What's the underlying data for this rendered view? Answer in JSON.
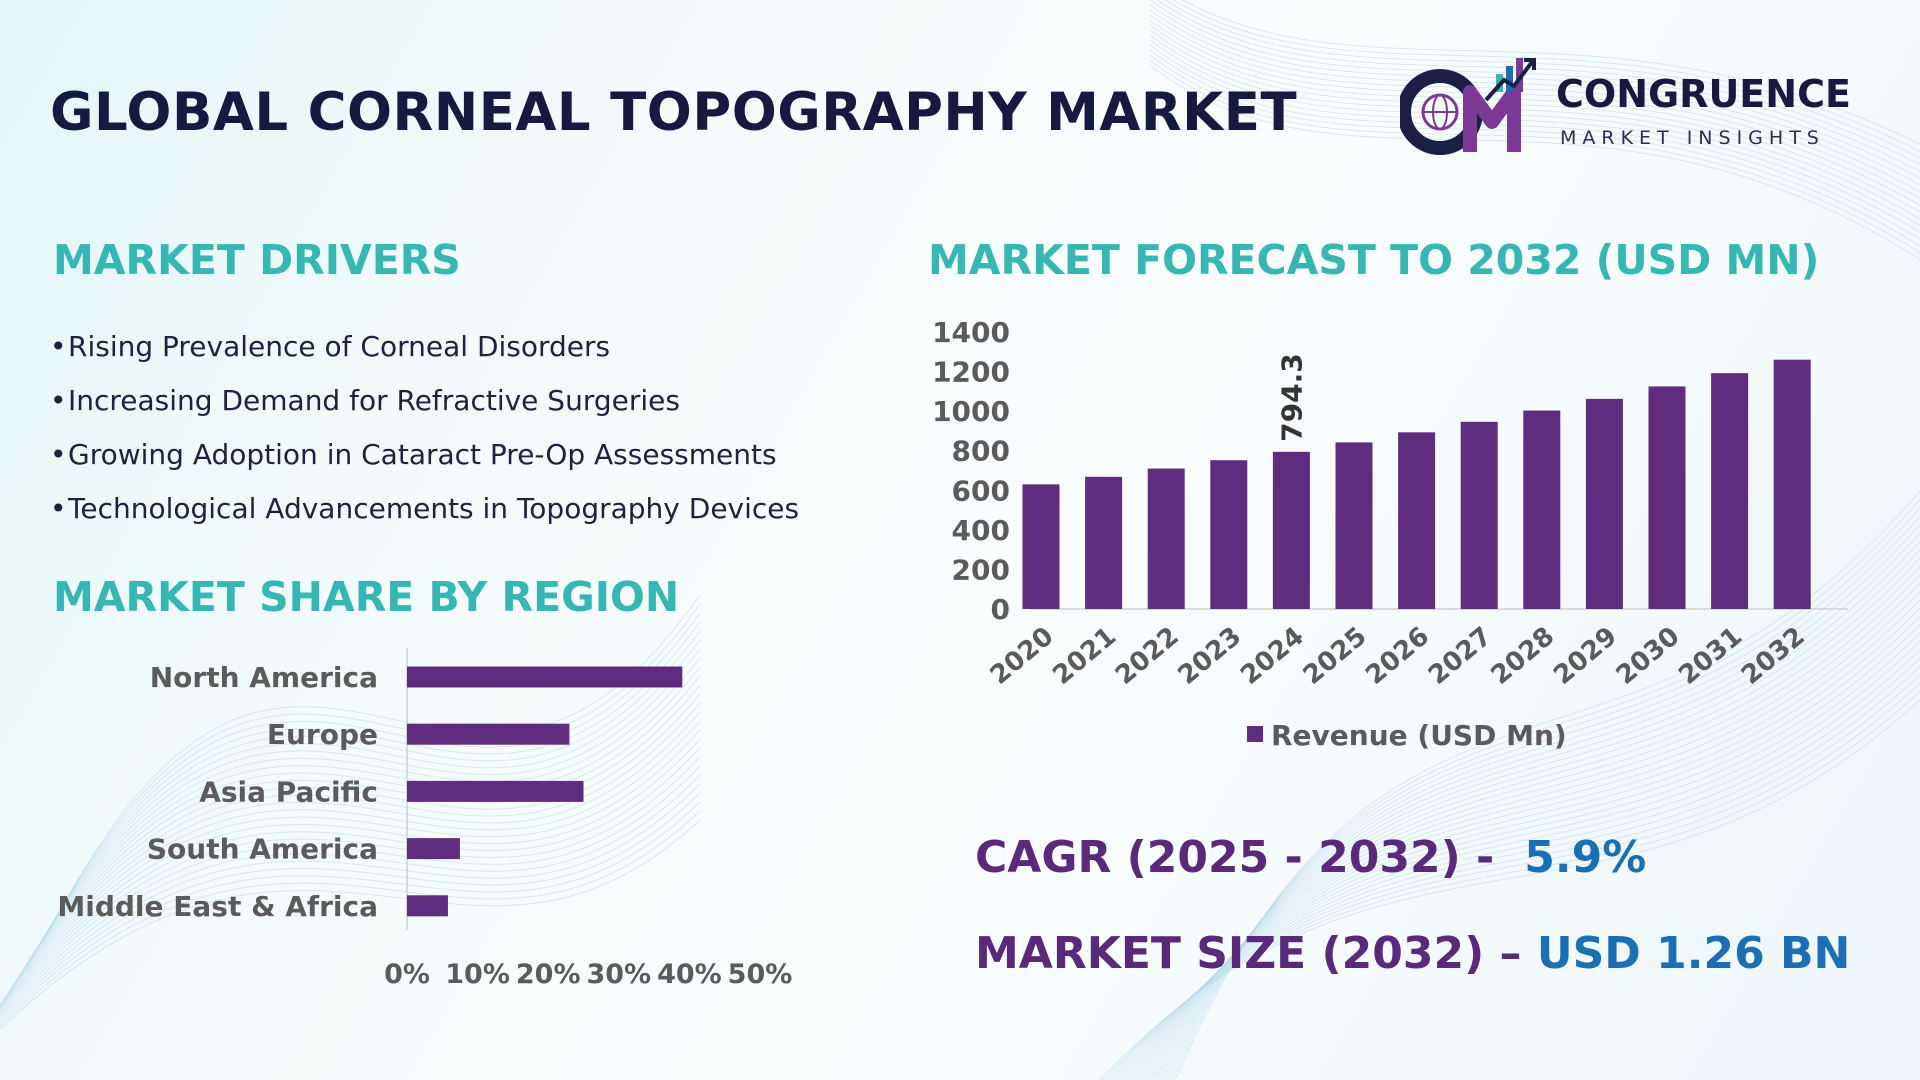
{
  "title": "GLOBAL CORNEAL TOPOGRAPHY MARKET",
  "logo": {
    "name": "CONGRUENCE",
    "tagline": "MARKET INSIGHTS",
    "mark_icon": "cm-logo-icon"
  },
  "colors": {
    "title": "#151a40",
    "heading": "#37b7b4",
    "bar": "#5e2d7d",
    "stat_label": "#5a2a7a",
    "stat_value": "#1a6fb5",
    "tick": "#5b5b5b"
  },
  "drivers": {
    "heading": "MARKET DRIVERS",
    "bullet": "•",
    "items": [
      "Rising Prevalence of Corneal Disorders",
      "Increasing Demand for Refractive Surgeries",
      "Growing Adoption in Cataract Pre-Op Assessments",
      "Technological Advancements in Topography Devices"
    ]
  },
  "region": {
    "heading": "MARKET SHARE BY REGION"
  },
  "forecast": {
    "heading": "MARKET FORECAST TO 2032 (USD MN)"
  },
  "stats": {
    "cagr_label": "CAGR (2025 - 2032) -",
    "cagr_value": "5.9%",
    "size_label": "MARKET SIZE (2032) –",
    "size_value": "USD 1.26 BN"
  },
  "chart_data": [
    {
      "type": "bar",
      "orientation": "vertical",
      "categories": [
        "2020",
        "2021",
        "2022",
        "2023",
        "2024",
        "2025",
        "2026",
        "2027",
        "2028",
        "2029",
        "2030",
        "2031",
        "2032"
      ],
      "series": [
        {
          "name": "Revenue (USD Mn)",
          "values": [
            630,
            668,
            710,
            752,
            794.3,
            842,
            893,
            946,
            1003,
            1062,
            1125,
            1192,
            1260
          ]
        }
      ],
      "data_labels": [
        {
          "category": "2024",
          "text": "794.3"
        }
      ],
      "yticks": [
        "0",
        "200",
        "400",
        "600",
        "800",
        "1000",
        "1200",
        "1400"
      ],
      "ylim": [
        0,
        1400
      ],
      "legend": "bottom",
      "grid": false
    },
    {
      "type": "bar",
      "orientation": "horizontal",
      "categories": [
        "North America",
        "Europe",
        "Asia Pacific",
        "South America",
        "Middle East & Africa"
      ],
      "values": [
        39,
        23,
        25,
        7.5,
        5.8
      ],
      "xticks": [
        "0%",
        "10%",
        "20%",
        "30%",
        "40%",
        "50%"
      ],
      "xlim": [
        0,
        50
      ],
      "grid": false
    }
  ]
}
